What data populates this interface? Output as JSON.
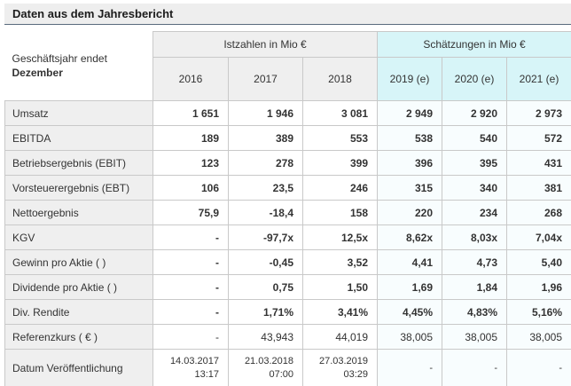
{
  "title": "Daten aus dem Jahresbericht",
  "table": {
    "corner_label_line1": "Geschäftsjahr endet",
    "corner_label_line2": "Dezember",
    "groups": [
      {
        "label": "Istzahlen in Mio €"
      },
      {
        "label": "Schätzungen in Mio €"
      }
    ],
    "columns": [
      "2016",
      "2017",
      "2018",
      "2019 (e)",
      "2020 (e)",
      "2021 (e)"
    ],
    "rows": [
      {
        "label": "Umsatz",
        "bold": true,
        "values": [
          "1 651",
          "1 946",
          "3 081",
          "2 949",
          "2 920",
          "2 973"
        ]
      },
      {
        "label": "EBITDA",
        "bold": true,
        "values": [
          "189",
          "389",
          "553",
          "538",
          "540",
          "572"
        ]
      },
      {
        "label": "Betriebsergebnis (EBIT)",
        "bold": true,
        "values": [
          "123",
          "278",
          "399",
          "396",
          "395",
          "431"
        ]
      },
      {
        "label": "Vorsteuerergebnis (EBT)",
        "bold": true,
        "values": [
          "106",
          "23,5",
          "246",
          "315",
          "340",
          "381"
        ]
      },
      {
        "label": "Nettoergebnis",
        "bold": true,
        "values": [
          "75,9",
          "-18,4",
          "158",
          "220",
          "234",
          "268"
        ]
      },
      {
        "label": "KGV",
        "bold": true,
        "values": [
          "-",
          "-97,7x",
          "12,5x",
          "8,62x",
          "8,03x",
          "7,04x"
        ]
      },
      {
        "label": "Gewinn pro Aktie ( )",
        "bold": true,
        "values": [
          "-",
          "-0,45",
          "3,52",
          "4,41",
          "4,73",
          "5,40"
        ]
      },
      {
        "label": "Dividende pro Aktie ( )",
        "bold": true,
        "values": [
          "-",
          "0,75",
          "1,50",
          "1,69",
          "1,84",
          "1,96"
        ]
      },
      {
        "label": "Div. Rendite",
        "bold": true,
        "values": [
          "-",
          "1,71%",
          "3,41%",
          "4,45%",
          "4,83%",
          "5,16%"
        ]
      },
      {
        "label": "Referenzkurs ( € )",
        "bold": false,
        "values": [
          "-",
          "43,943",
          "44,019",
          "38,005",
          "38,005",
          "38,005"
        ]
      },
      {
        "label": "Datum Veröffentlichung",
        "bold": false,
        "multiline": true,
        "values": [
          "14.03.2017\n13:17",
          "21.03.2018\n07:00",
          "27.03.2019\n03:29",
          "-",
          "-",
          "-"
        ]
      }
    ]
  },
  "chart_data": {
    "type": "table",
    "title": "Daten aus dem Jahresbericht",
    "column_groups": [
      "Istzahlen in Mio €",
      "Schätzungen in Mio €"
    ],
    "columns": [
      "2016",
      "2017",
      "2018",
      "2019 (e)",
      "2020 (e)",
      "2021 (e)"
    ],
    "row_header": "Geschäftsjahr endet Dezember",
    "rows": [
      {
        "label": "Umsatz",
        "values": [
          "1 651",
          "1 946",
          "3 081",
          "2 949",
          "2 920",
          "2 973"
        ]
      },
      {
        "label": "EBITDA",
        "values": [
          "189",
          "389",
          "553",
          "538",
          "540",
          "572"
        ]
      },
      {
        "label": "Betriebsergebnis (EBIT)",
        "values": [
          "123",
          "278",
          "399",
          "396",
          "395",
          "431"
        ]
      },
      {
        "label": "Vorsteuerergebnis (EBT)",
        "values": [
          "106",
          "23,5",
          "246",
          "315",
          "340",
          "381"
        ]
      },
      {
        "label": "Nettoergebnis",
        "values": [
          "75,9",
          "-18,4",
          "158",
          "220",
          "234",
          "268"
        ]
      },
      {
        "label": "KGV",
        "values": [
          "-",
          "-97,7x",
          "12,5x",
          "8,62x",
          "8,03x",
          "7,04x"
        ]
      },
      {
        "label": "Gewinn pro Aktie ( )",
        "values": [
          "-",
          "-0,45",
          "3,52",
          "4,41",
          "4,73",
          "5,40"
        ]
      },
      {
        "label": "Dividende pro Aktie ( )",
        "values": [
          "-",
          "0,75",
          "1,50",
          "1,69",
          "1,84",
          "1,96"
        ]
      },
      {
        "label": "Div. Rendite",
        "values": [
          "-",
          "1,71%",
          "3,41%",
          "4,45%",
          "4,83%",
          "5,16%"
        ]
      },
      {
        "label": "Referenzkurs ( € )",
        "values": [
          "-",
          "43,943",
          "44,019",
          "38,005",
          "38,005",
          "38,005"
        ]
      },
      {
        "label": "Datum Veröffentlichung",
        "values": [
          "14.03.2017 13:17",
          "21.03.2018 07:00",
          "27.03.2019 03:29",
          "-",
          "-",
          "-"
        ]
      }
    ]
  },
  "colors": {
    "title_bg": "#eeeeee",
    "title_underline": "#5a6b7d",
    "header_bg": "#efefef",
    "est_header_bg": "#d7f5f8",
    "est_cell_bg": "#f8fdfe",
    "grid_border": "#c9c9c9",
    "text": "#333333"
  }
}
